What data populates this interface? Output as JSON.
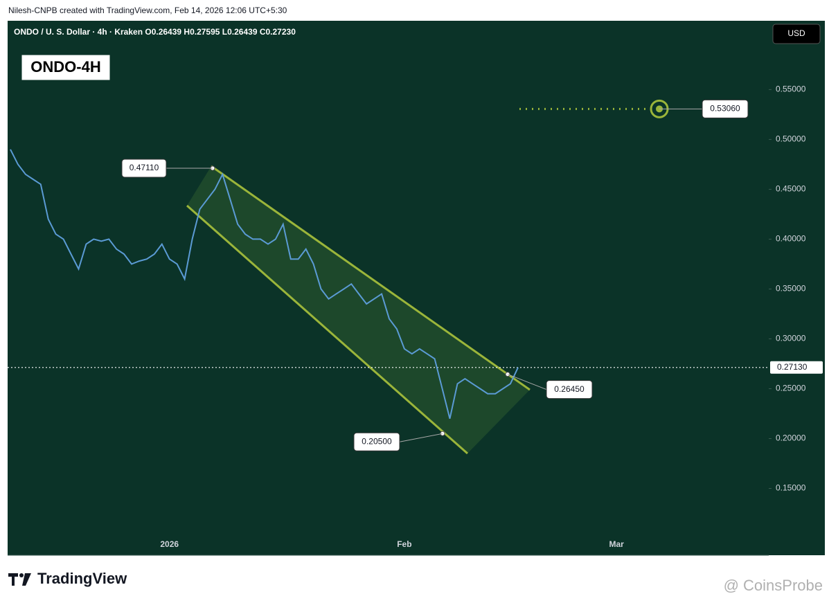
{
  "chart_data": {
    "type": "line",
    "attribution": "Nilesh-CNPB created with TradingView.com, Feb 14, 2026 12:06 UTC+5:30",
    "subtitle": "ONDO / U. S. Dollar · 4h · Kraken  O0.26439  H0.27595  L0.26439  C0.27230",
    "title": "ONDO-4H",
    "currency": "USD",
    "brand": "TradingView",
    "watermark": "@ CoinsProbe",
    "categories": [
      null,
      null,
      null,
      null,
      null,
      null,
      null,
      null,
      null,
      null,
      null,
      null,
      null,
      null,
      null,
      null,
      null,
      null,
      null,
      null,
      null,
      "2026",
      null,
      null,
      null,
      null,
      null,
      null,
      null,
      null,
      null,
      null,
      null,
      null,
      null,
      null,
      null,
      null,
      null,
      null,
      null,
      null,
      null,
      null,
      null,
      null,
      null,
      null,
      null,
      null,
      null,
      null,
      "Feb",
      null,
      null,
      null,
      null,
      null,
      null,
      null,
      null,
      null,
      null,
      null,
      null,
      null,
      null,
      null,
      null,
      null,
      null,
      null,
      null,
      null,
      null,
      null,
      null,
      null,
      null,
      null,
      "Mar",
      null,
      null,
      null,
      null,
      null,
      null,
      null,
      null,
      null,
      null,
      null,
      null,
      null,
      null,
      null,
      null,
      null,
      null,
      null
    ],
    "series": [
      {
        "name": "ONDO / U. S. Dollar",
        "color": "#5b9bd5",
        "values": [
          0.49,
          0.475,
          0.465,
          0.46,
          0.455,
          0.42,
          0.405,
          0.4,
          0.385,
          0.37,
          0.395,
          0.4,
          0.398,
          0.4,
          0.39,
          0.385,
          0.375,
          0.378,
          0.38,
          0.385,
          0.395,
          0.38,
          0.375,
          0.36,
          0.4,
          0.43,
          0.44,
          0.45,
          0.465,
          0.44,
          0.415,
          0.405,
          0.4,
          0.4,
          0.395,
          0.4,
          0.415,
          0.38,
          0.38,
          0.39,
          0.375,
          0.35,
          0.34,
          0.345,
          0.35,
          0.355,
          0.345,
          0.335,
          0.34,
          0.345,
          0.32,
          0.31,
          0.29,
          0.285,
          0.29,
          0.285,
          0.28,
          0.25,
          0.22,
          0.255,
          0.26,
          0.255,
          0.25,
          0.245,
          0.245,
          0.25,
          0.255,
          0.2713,
          null,
          null,
          null,
          null,
          null,
          null,
          null,
          null,
          null,
          null,
          null,
          null,
          null,
          null,
          null,
          null,
          null,
          null,
          null,
          null,
          null,
          null,
          null,
          null,
          null,
          null,
          null,
          null,
          null,
          null,
          null,
          null
        ]
      }
    ],
    "ylim": [
      0.083,
      0.619
    ],
    "yticks": [
      {
        "value": 0.15,
        "label": "0.15000"
      },
      {
        "value": 0.2,
        "label": "0.20000"
      },
      {
        "value": 0.25,
        "label": "0.25000"
      },
      {
        "value": 0.3,
        "label": "0.30000"
      },
      {
        "value": 0.35,
        "label": "0.35000"
      },
      {
        "value": 0.4,
        "label": "0.40000"
      },
      {
        "value": 0.45,
        "label": "0.45000"
      },
      {
        "value": 0.5,
        "label": "0.50000"
      },
      {
        "value": 0.55,
        "label": "0.55000"
      }
    ],
    "last_price": {
      "value": 0.2713,
      "label": "0.27130"
    },
    "annotations": [
      {
        "value": 0.4711,
        "label": "0.47110"
      },
      {
        "value": 0.205,
        "label": "0.20500"
      },
      {
        "value": 0.2645,
        "label": "0.26450"
      },
      {
        "value": 0.5306,
        "label": "0.53060"
      }
    ],
    "grid": false
  }
}
